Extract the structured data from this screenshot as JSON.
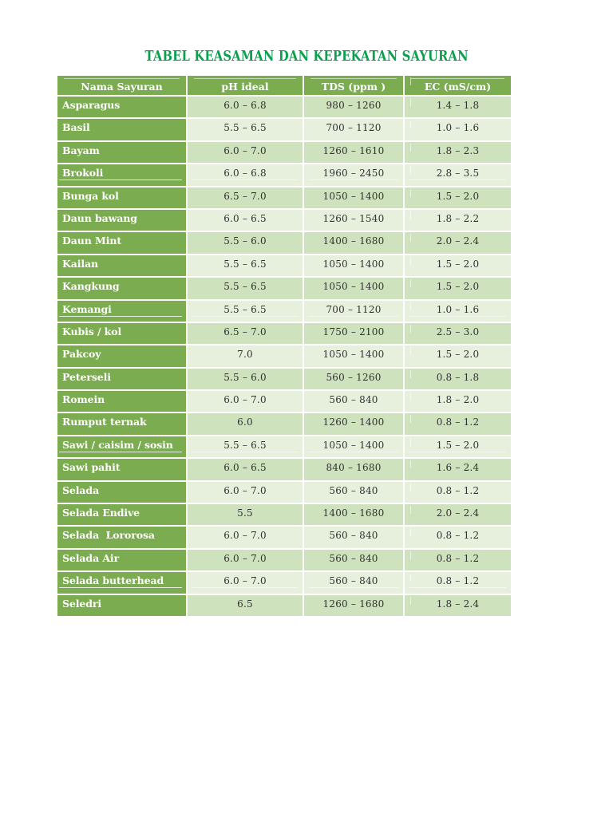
{
  "title": {
    "text": "TABEL KEASAMAN DAN KEPEKATAN SAYURAN",
    "color": "#0aa04e"
  },
  "table": {
    "columns": [
      "Nama Sayuran",
      "pH ideal",
      "TDS (ppm )",
      "EC (mS/cm)"
    ],
    "colors": {
      "header_green": "#7bac50",
      "row_band_dark": "#cee2bd",
      "row_band_light": "#e6f0dd",
      "name_text": "#ffffff",
      "data_text": "#313131",
      "separator": "#ffffff"
    },
    "rows": [
      {
        "name": "Asparagus",
        "ph": "6.0 – 6.8",
        "tds": "980 – 1260",
        "ec": "1.4 – 1.8",
        "divider": false
      },
      {
        "name": "Basil",
        "ph": "5.5 – 6.5",
        "tds": "700 – 1120",
        "ec": "1.0 – 1.6",
        "divider": false
      },
      {
        "name": "Bayam",
        "ph": "6.0 – 7.0",
        "tds": "1260 – 1610",
        "ec": "1.8 – 2.3",
        "divider": false
      },
      {
        "name": "Brokoli",
        "ph": "6.0 – 6.8",
        "tds": "1960 – 2450",
        "ec": "2.8 – 3.5",
        "divider": true
      },
      {
        "name": "Bunga kol",
        "ph": "6.5 – 7.0",
        "tds": "1050 – 1400",
        "ec": "1.5 – 2.0",
        "divider": false
      },
      {
        "name": "Daun bawang",
        "ph": "6.0 – 6.5",
        "tds": "1260 – 1540",
        "ec": "1.8 – 2.2",
        "divider": false
      },
      {
        "name": "Daun Mint",
        "ph": "5.5 – 6.0",
        "tds": "1400 – 1680",
        "ec": "2.0 – 2.4",
        "divider": false
      },
      {
        "name": "Kailan",
        "ph": "5.5 – 6.5",
        "tds": "1050 – 1400",
        "ec": "1.5 – 2.0",
        "divider": false
      },
      {
        "name": "Kangkung",
        "ph": "5.5 – 6.5",
        "tds": "1050 – 1400",
        "ec": "1.5 – 2.0",
        "divider": false
      },
      {
        "name": "Kemangi",
        "ph": "5.5 – 6.5",
        "tds": "700 – 1120",
        "ec": "1.0 – 1.6",
        "divider": true
      },
      {
        "name": "Kubis / kol",
        "ph": "6.5 – 7.0",
        "tds": "1750 – 2100",
        "ec": "2.5 – 3.0",
        "divider": false
      },
      {
        "name": "Pakcoy",
        "ph": "7.0",
        "tds": "1050 – 1400",
        "ec": "1.5 – 2.0",
        "divider": false
      },
      {
        "name": "Peterseli",
        "ph": "5.5 – 6.0",
        "tds": "560 – 1260",
        "ec": "0.8 – 1.8",
        "divider": false
      },
      {
        "name": "Romein",
        "ph": "6.0 – 7.0",
        "tds": "560 – 840",
        "ec": "1.8 – 2.0",
        "divider": false
      },
      {
        "name": "Rumput ternak",
        "ph": "6.0",
        "tds": "1260 – 1400",
        "ec": "0.8 – 1.2",
        "divider": false
      },
      {
        "name": "Sawi / caisim / sosin",
        "ph": "5.5 – 6.5",
        "tds": "1050 – 1400",
        "ec": "1.5 – 2.0",
        "divider": true
      },
      {
        "name": "Sawi pahit",
        "ph": "6.0 – 6.5",
        "tds": "840 – 1680",
        "ec": "1.6 – 2.4",
        "divider": false
      },
      {
        "name": "Selada",
        "ph": "6.0 – 7.0",
        "tds": "560 – 840",
        "ec": "0.8 – 1.2",
        "divider": false
      },
      {
        "name": "Selada Endive",
        "ph": "5.5",
        "tds": "1400 – 1680",
        "ec": "2.0 – 2.4",
        "divider": false
      },
      {
        "name": "Selada  Lororosa",
        "ph": "6.0 – 7.0",
        "tds": "560 – 840",
        "ec": "0.8 – 1.2",
        "divider": false
      },
      {
        "name": "Selada Air",
        "ph": "6.0 – 7.0",
        "tds": "560 – 840",
        "ec": "0.8 – 1.2",
        "divider": false
      },
      {
        "name": "Selada butterhead",
        "ph": "6.0 – 7.0",
        "tds": "560 – 840",
        "ec": "0.8 – 1.2",
        "divider": true
      },
      {
        "name": "Seledri",
        "ph": "6.5",
        "tds": "1260 – 1680",
        "ec": "1.8 – 2.4",
        "divider": false
      }
    ]
  }
}
